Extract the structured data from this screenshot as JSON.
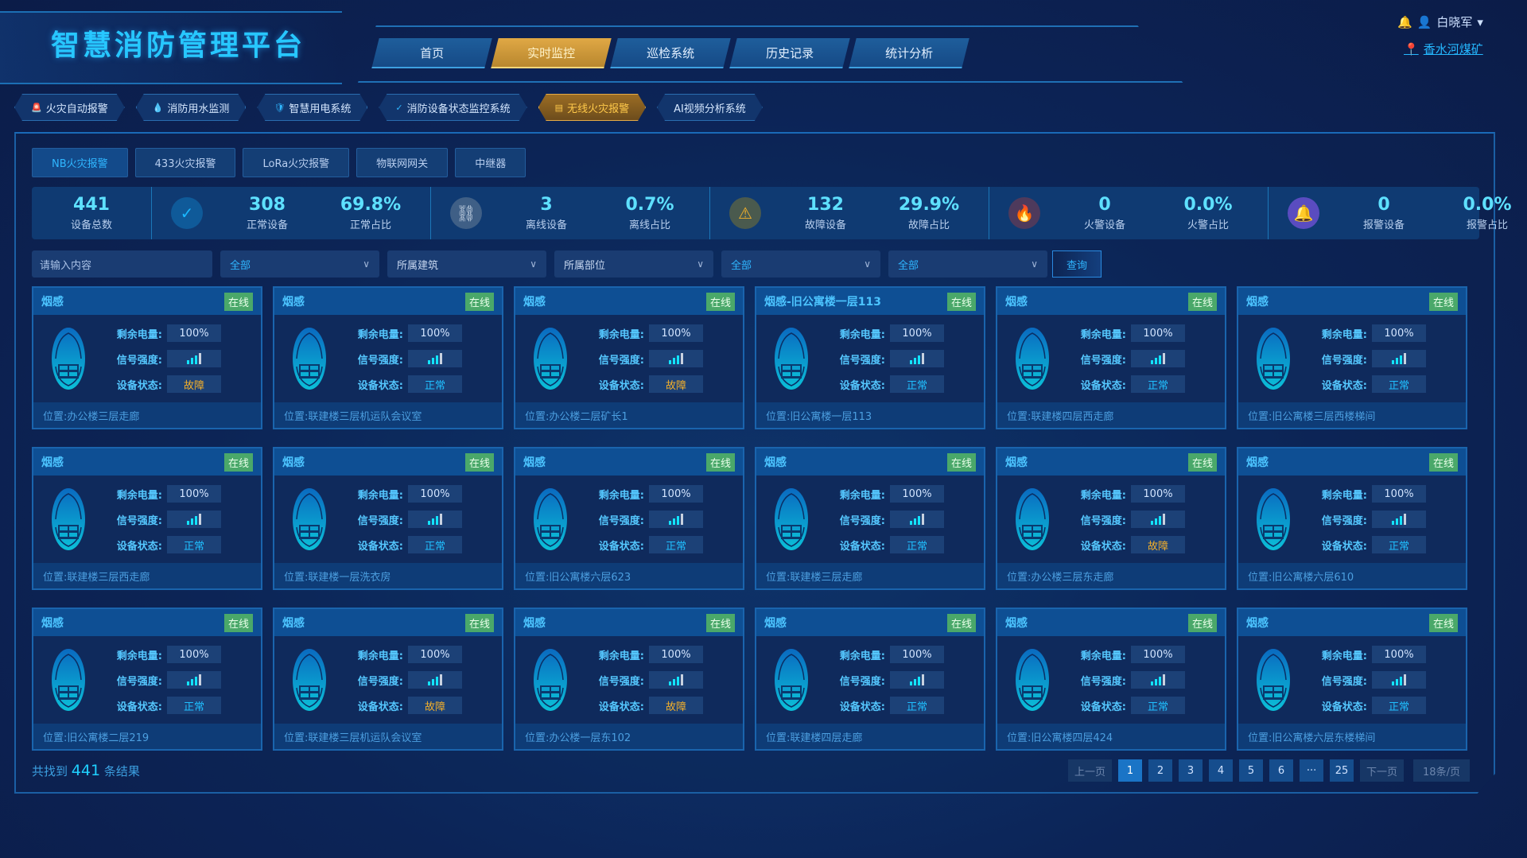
{
  "header": {
    "title": "智慧消防管理平台",
    "user": "白晓军",
    "site": "香水河煤矿",
    "nav": [
      {
        "label": "首页"
      },
      {
        "label": "实时监控",
        "active": true
      },
      {
        "label": "巡检系统"
      },
      {
        "label": "历史记录"
      },
      {
        "label": "统计分析"
      }
    ]
  },
  "subnav": [
    {
      "label": "火灾自动报警",
      "icon": "alarm-icon"
    },
    {
      "label": "消防用水监测",
      "icon": "water-drop-icon"
    },
    {
      "label": "智慧用电系统",
      "icon": "shield-bolt-icon"
    },
    {
      "label": "消防设备状态监控系统",
      "icon": "check-circle-icon"
    },
    {
      "label": "无线火灾报警",
      "icon": "detector-icon",
      "active": true
    },
    {
      "label": "AI视频分析系统"
    }
  ],
  "type_tabs": [
    {
      "label": "NB火灾报警",
      "active": true
    },
    {
      "label": "433火灾报警"
    },
    {
      "label": "LoRa火灾报警"
    },
    {
      "label": "物联网网关"
    },
    {
      "label": "中继器"
    }
  ],
  "stats": {
    "total": {
      "value": "441",
      "label": "设备总数"
    },
    "groups": [
      {
        "icon": "check-circle-icon",
        "color": "#1ab8ff",
        "bg": "#0f5a99",
        "count": "308",
        "count_label": "正常设备",
        "ratio": "69.8%",
        "ratio_label": "正常占比"
      },
      {
        "icon": "broken-link-icon",
        "color": "#c8d6e6",
        "bg": "#3f5f86",
        "count": "3",
        "count_label": "离线设备",
        "ratio": "0.7%",
        "ratio_label": "离线占比"
      },
      {
        "icon": "warning-icon",
        "color": "#f2b02a",
        "bg": "#4a5a4e",
        "count": "132",
        "count_label": "故障设备",
        "ratio": "29.9%",
        "ratio_label": "故障占比"
      },
      {
        "icon": "fire-icon",
        "color": "#f05a3a",
        "bg": "#4e3a5c",
        "count": "0",
        "count_label": "火警设备",
        "ratio": "0.0%",
        "ratio_label": "火警占比"
      },
      {
        "icon": "bell-icon",
        "color": "#a88cff",
        "bg": "#5a4cc0",
        "count": "0",
        "count_label": "报警设备",
        "ratio": "0.0%",
        "ratio_label": "报警占比"
      }
    ]
  },
  "filters": {
    "search_placeholder": "请输入内容",
    "selects": [
      {
        "value": "全部"
      },
      {
        "value": "所属建筑",
        "placeholder": true
      },
      {
        "value": "所属部位",
        "placeholder": true
      },
      {
        "value": "全部"
      },
      {
        "value": "全部"
      }
    ],
    "query": "查询"
  },
  "card_labels": {
    "battery": "剩余电量:",
    "signal": "信号强度:",
    "status": "设备状态:",
    "location_prefix": "位置: "
  },
  "cards": [
    {
      "name": "烟感",
      "online": "在线",
      "battery": "100%",
      "signal": 3,
      "status": "故障",
      "location": "办公楼三层走廊"
    },
    {
      "name": "烟感",
      "online": "在线",
      "battery": "100%",
      "signal": 3,
      "status": "正常",
      "location": "联建楼三层机运队会议室"
    },
    {
      "name": "烟感",
      "online": "在线",
      "battery": "100%",
      "signal": 3,
      "status": "故障",
      "location": "办公楼二层矿长1"
    },
    {
      "name": "烟感-旧公寓楼一层113",
      "online": "在线",
      "battery": "100%",
      "signal": 3,
      "status": "正常",
      "location": "旧公寓楼一层113"
    },
    {
      "name": "烟感",
      "online": "在线",
      "battery": "100%",
      "signal": 3,
      "status": "正常",
      "location": "联建楼四层西走廊"
    },
    {
      "name": "烟感",
      "online": "在线",
      "battery": "100%",
      "signal": 3,
      "status": "正常",
      "location": "旧公寓楼三层西楼梯间"
    },
    {
      "name": "烟感",
      "online": "在线",
      "battery": "100%",
      "signal": 3,
      "status": "正常",
      "location": "联建楼三层西走廊"
    },
    {
      "name": "烟感",
      "online": "在线",
      "battery": "100%",
      "signal": 3,
      "status": "正常",
      "location": "联建楼一层洗衣房"
    },
    {
      "name": "烟感",
      "online": "在线",
      "battery": "100%",
      "signal": 3,
      "status": "正常",
      "location": "旧公寓楼六层623"
    },
    {
      "name": "烟感",
      "online": "在线",
      "battery": "100%",
      "signal": 3,
      "status": "正常",
      "location": "联建楼三层走廊"
    },
    {
      "name": "烟感",
      "online": "在线",
      "battery": "100%",
      "signal": 3,
      "status": "故障",
      "location": "办公楼三层东走廊"
    },
    {
      "name": "烟感",
      "online": "在线",
      "battery": "100%",
      "signal": 3,
      "status": "正常",
      "location": "旧公寓楼六层610"
    },
    {
      "name": "烟感",
      "online": "在线",
      "battery": "100%",
      "signal": 3,
      "status": "正常",
      "location": "旧公寓楼二层219"
    },
    {
      "name": "烟感",
      "online": "在线",
      "battery": "100%",
      "signal": 3,
      "status": "故障",
      "location": "联建楼三层机运队会议室"
    },
    {
      "name": "烟感",
      "online": "在线",
      "battery": "100%",
      "signal": 3,
      "status": "故障",
      "location": "办公楼一层东102"
    },
    {
      "name": "烟感",
      "online": "在线",
      "battery": "100%",
      "signal": 3,
      "status": "正常",
      "location": "联建楼四层走廊"
    },
    {
      "name": "烟感",
      "online": "在线",
      "battery": "100%",
      "signal": 3,
      "status": "正常",
      "location": "旧公寓楼四层424"
    },
    {
      "name": "烟感",
      "online": "在线",
      "battery": "100%",
      "signal": 3,
      "status": "正常",
      "location": "旧公寓楼六层东楼梯间"
    }
  ],
  "footer": {
    "prefix": "共找到",
    "count": "441",
    "suffix": "条结果",
    "pager": {
      "prev": "上一页",
      "pages": [
        "1",
        "2",
        "3",
        "4",
        "5",
        "6",
        "···",
        "25"
      ],
      "current": "1",
      "next": "下一页",
      "page_size": "18条/页"
    }
  },
  "colors": {
    "ok": "#20c0ff",
    "fault": "#f4b02a",
    "online": "#4aa86a",
    "accent_active": "#e0a845"
  }
}
